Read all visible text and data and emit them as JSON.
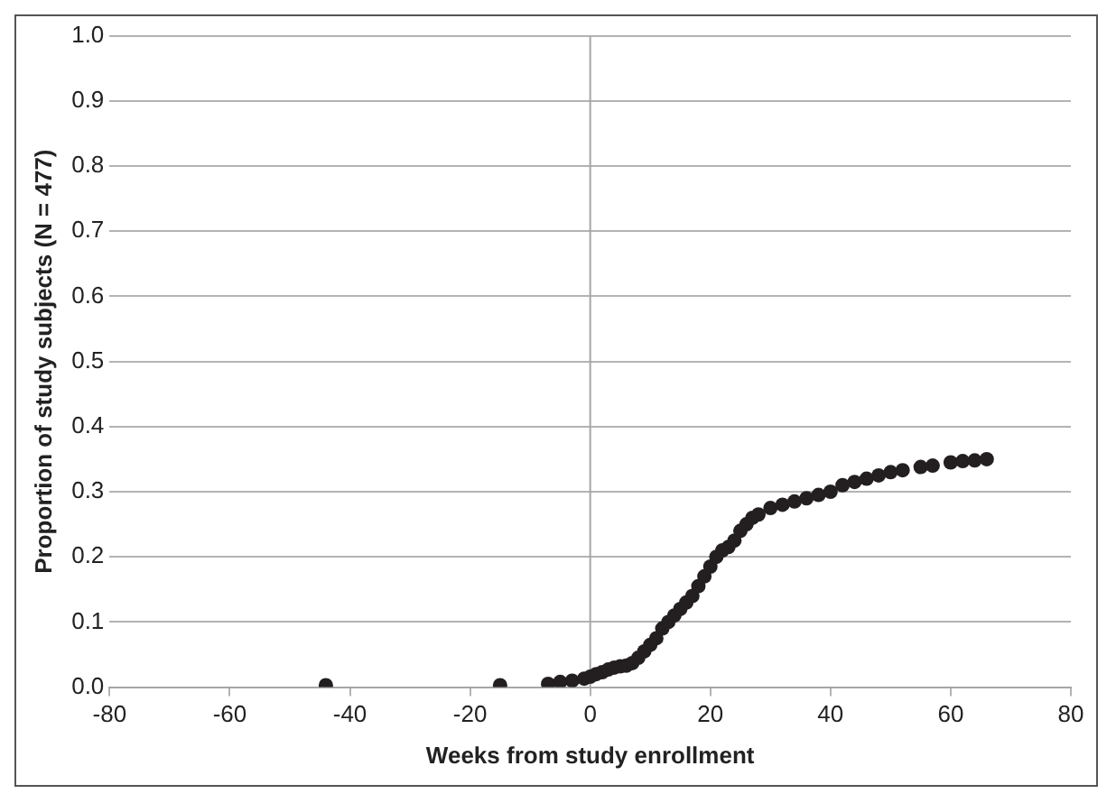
{
  "chart_data": {
    "type": "scatter",
    "xlabel": "Weeks from study enrollment",
    "ylabel": "Proportion of study subjects (N = 477)",
    "xlim": [
      -80,
      80
    ],
    "xticks": [
      -80,
      -60,
      -40,
      -20,
      0,
      20,
      40,
      60,
      80
    ],
    "ylim": [
      0,
      1
    ],
    "yticks": [
      {
        "value": 0,
        "label": "0.0"
      },
      {
        "value": 0.1,
        "label": "0.1"
      },
      {
        "value": 0.2,
        "label": "0.2"
      },
      {
        "value": 0.3,
        "label": "0.3"
      },
      {
        "value": 0.4,
        "label": "0.4"
      },
      {
        "value": 0.5,
        "label": "0.5"
      },
      {
        "value": 0.6,
        "label": "0.6"
      },
      {
        "value": 0.7,
        "label": "0.7"
      },
      {
        "value": 0.8,
        "label": "0.8"
      },
      {
        "value": 0.9,
        "label": "0.9"
      },
      {
        "value": 1,
        "label": "1.0"
      }
    ],
    "grid": "y",
    "marker": "circle",
    "legend": false,
    "ref_lines": [
      {
        "axis": "x",
        "value": 0,
        "color": "#a6a6a6"
      }
    ],
    "series": [
      {
        "color": "#231f20",
        "x": [
          -44,
          -15,
          -7,
          -5,
          -3,
          -1,
          0,
          1,
          2,
          3,
          4,
          5,
          6,
          7,
          8,
          9,
          10,
          11,
          12,
          13,
          14,
          15,
          16,
          17,
          18,
          19,
          20,
          21,
          22,
          23,
          24,
          25,
          26,
          27,
          28,
          30,
          32,
          34,
          36,
          38,
          40,
          42,
          44,
          46,
          48,
          50,
          52,
          55,
          57,
          60,
          62,
          64,
          66
        ],
        "values": [
          0.003,
          0.003,
          0.005,
          0.008,
          0.01,
          0.013,
          0.016,
          0.02,
          0.023,
          0.027,
          0.03,
          0.032,
          0.033,
          0.037,
          0.045,
          0.055,
          0.065,
          0.075,
          0.09,
          0.1,
          0.11,
          0.12,
          0.13,
          0.14,
          0.155,
          0.17,
          0.185,
          0.2,
          0.21,
          0.215,
          0.225,
          0.24,
          0.25,
          0.26,
          0.265,
          0.275,
          0.28,
          0.285,
          0.29,
          0.295,
          0.3,
          0.31,
          0.315,
          0.32,
          0.325,
          0.33,
          0.333,
          0.338,
          0.34,
          0.345,
          0.347,
          0.348,
          0.35
        ]
      }
    ]
  }
}
